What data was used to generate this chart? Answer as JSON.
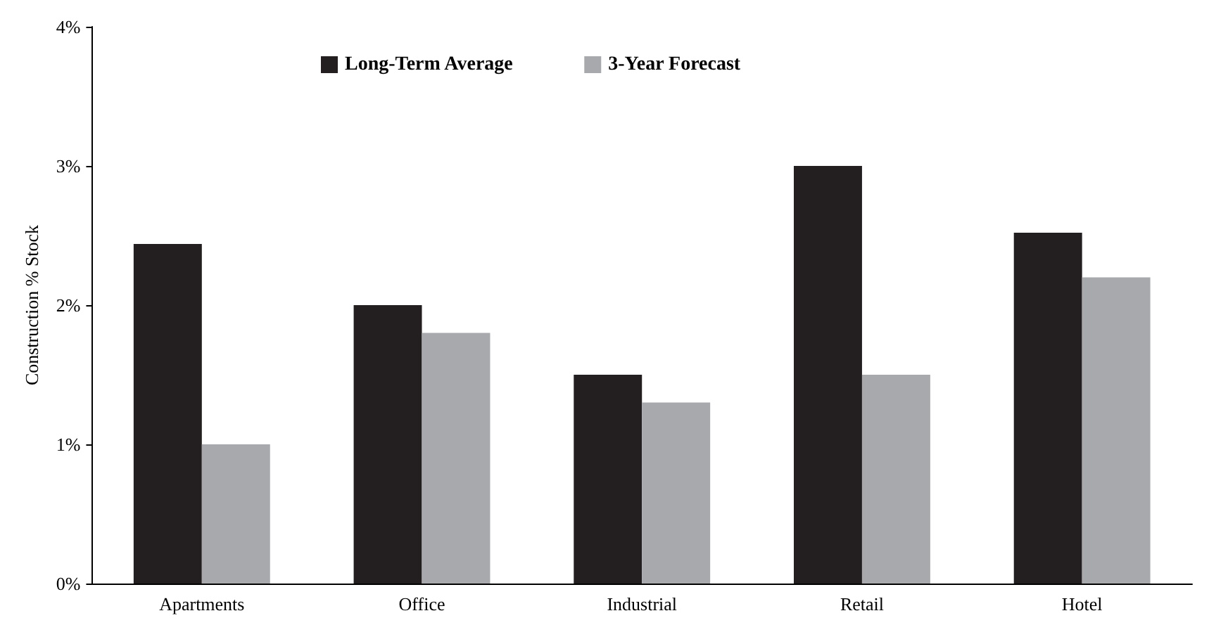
{
  "chart_data": {
    "type": "bar",
    "ylabel": "Construction % Stock",
    "categories": [
      "Apartments",
      "Office",
      "Industrial",
      "Retail",
      "Hotel"
    ],
    "series": [
      {
        "name": "Long-Term Average",
        "color": "#231f20",
        "values": [
          2.44,
          2.0,
          1.5,
          3.0,
          2.52
        ]
      },
      {
        "name": "3-Year Forecast",
        "color": "#a7a9ac",
        "values": [
          1.0,
          1.8,
          1.3,
          1.5,
          2.2
        ]
      }
    ],
    "ylim": [
      0,
      4
    ],
    "yticks": [
      {
        "value": 0,
        "label": "0%"
      },
      {
        "value": 1,
        "label": "1%"
      },
      {
        "value": 2,
        "label": "2%"
      },
      {
        "value": 3,
        "label": "3%"
      },
      {
        "value": 4,
        "label": "4%"
      }
    ],
    "grid": false,
    "legend": "top"
  }
}
